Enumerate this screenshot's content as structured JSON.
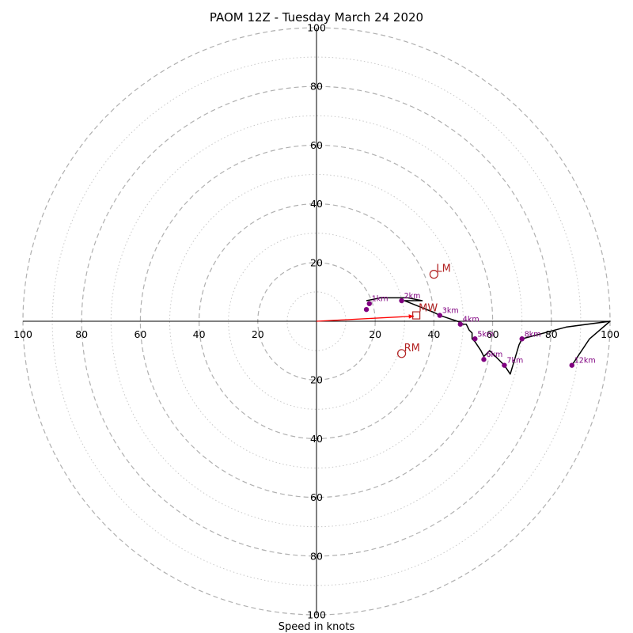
{
  "chart_data": {
    "type": "hodograph",
    "title": "PAOM 12Z - Tuesday March 24 2020",
    "xlabel": "Speed in knots",
    "range": 100,
    "ring_interval_major": 20,
    "ring_interval_minor": 10,
    "tick_labels": {
      "right": [
        "20",
        "40",
        "60",
        "80",
        "100"
      ],
      "left": [
        "20",
        "40",
        "60",
        "80",
        "100"
      ],
      "up": [
        "20",
        "40",
        "60",
        "80",
        "100"
      ],
      "down": [
        "20",
        "40",
        "60",
        "80",
        "100"
      ]
    },
    "tick_values": [
      20,
      40,
      60,
      80,
      100
    ],
    "colors": {
      "trace": "#000000",
      "height_points": "#800080",
      "storm_markers": "#b22222",
      "mean_wind_arrow": "#ff0000",
      "major_ring": "#b0b0b0",
      "minor_ring": "#c8c8c8"
    },
    "trace": [
      [
        17,
        7
      ],
      [
        22,
        8
      ],
      [
        26,
        8
      ],
      [
        31,
        8
      ],
      [
        36,
        7
      ],
      [
        30,
        7
      ],
      [
        35,
        5
      ],
      [
        40,
        3
      ],
      [
        42,
        2
      ],
      [
        45,
        1
      ],
      [
        48,
        0
      ],
      [
        50,
        -1
      ],
      [
        51,
        -1
      ],
      [
        52,
        -3
      ],
      [
        53,
        -4
      ],
      [
        53,
        -6
      ],
      [
        54,
        -7
      ],
      [
        56,
        -10
      ],
      [
        57,
        -12
      ],
      [
        59,
        -10
      ],
      [
        62,
        -13
      ],
      [
        64,
        -15
      ],
      [
        66,
        -18
      ],
      [
        69,
        -8
      ],
      [
        70,
        -6
      ],
      [
        85,
        -2
      ],
      [
        100,
        0
      ],
      [
        93,
        -6
      ],
      [
        87,
        -15
      ]
    ],
    "height_points": [
      {
        "label": "1km",
        "u": 18,
        "v": 6
      },
      {
        "label": "",
        "u": 17,
        "v": 4
      },
      {
        "label": "2km",
        "u": 29,
        "v": 7
      },
      {
        "label": "3km",
        "u": 42,
        "v": 2
      },
      {
        "label": "4km",
        "u": 49,
        "v": -1
      },
      {
        "label": "5km",
        "u": 54,
        "v": -6
      },
      {
        "label": "6km",
        "u": 57,
        "v": -13
      },
      {
        "label": "7km",
        "u": 64,
        "v": -15
      },
      {
        "label": "8km",
        "u": 70,
        "v": -6
      },
      {
        "label": "12km",
        "u": 87,
        "v": -15
      }
    ],
    "storm_motion": [
      {
        "label": "LM",
        "u": 40,
        "v": 16
      },
      {
        "label": "RM",
        "u": 29,
        "v": -11
      }
    ],
    "mean_wind": {
      "label": "MW",
      "u": 34,
      "v": 2
    }
  }
}
